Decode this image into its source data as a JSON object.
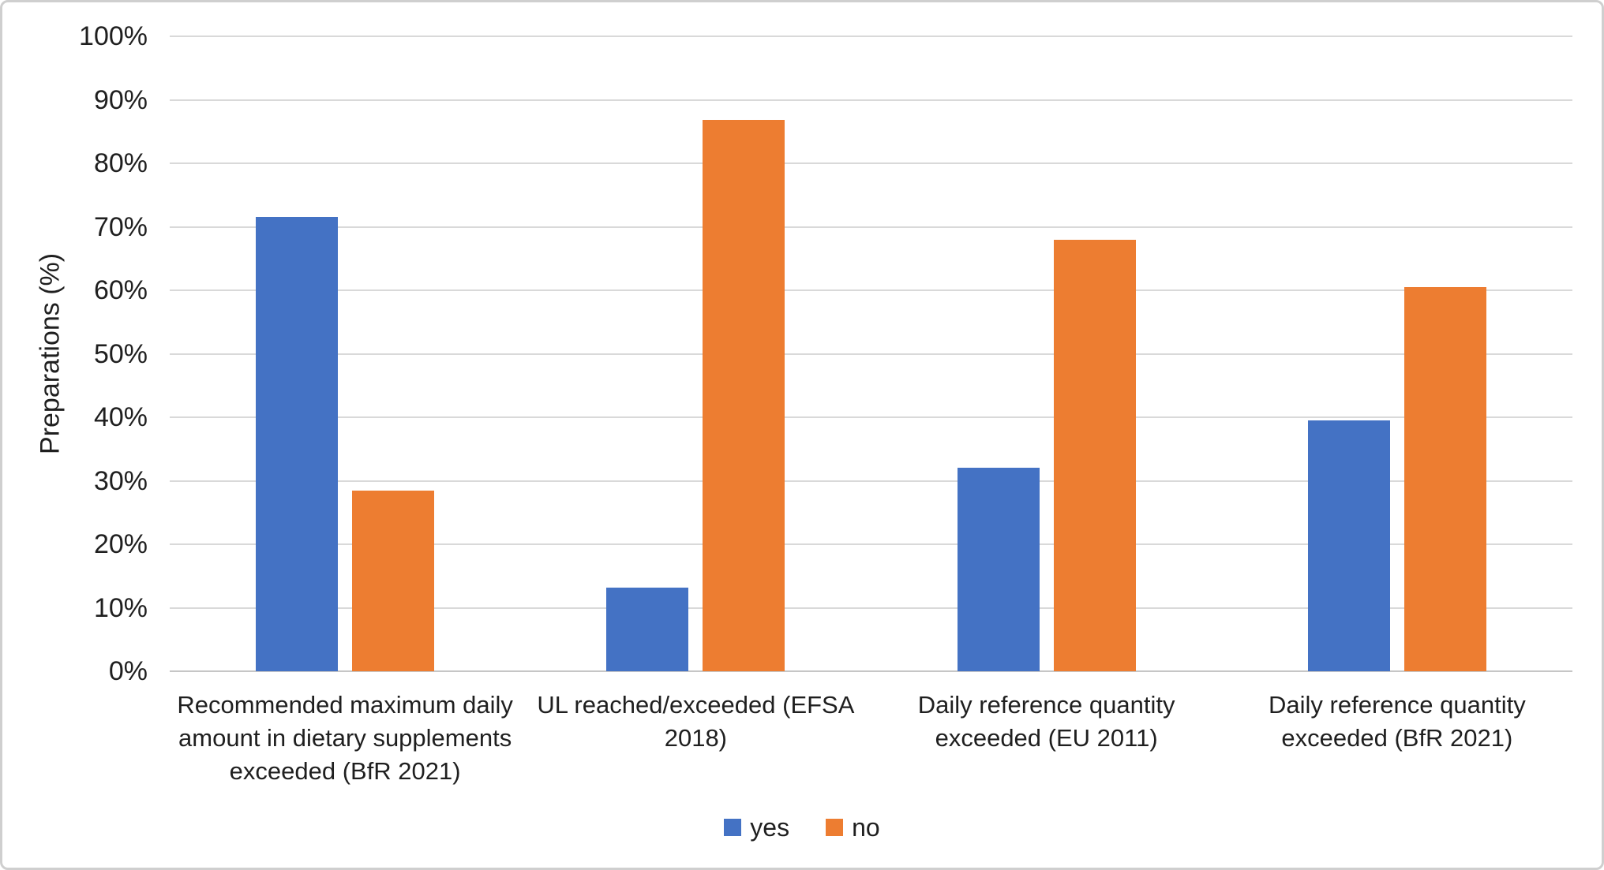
{
  "figure": {
    "background": "#ffffff",
    "border_color": "#cfcfcf",
    "text_color": "#1f1f1f"
  },
  "chart_data": {
    "type": "bar",
    "title": "",
    "xlabel": "",
    "ylabel": "Preparations (%)",
    "ylim": [
      0,
      100
    ],
    "ytick_step": 10,
    "ytick_suffix": "%",
    "grid": true,
    "gridline_color": "#d9d9d9",
    "legend_position": "bottom",
    "categories": [
      "Recommended maximum daily amount in dietary supplements exceeded (BfR 2021)",
      "UL reached/exceeded (EFSA 2018)",
      "Daily reference quantity exceeded (EU 2011)",
      "Daily reference quantity exceeded (BfR 2021)"
    ],
    "series": [
      {
        "name": "yes",
        "color": "#4472C4",
        "values": [
          71.6,
          13.2,
          32.0,
          39.5
        ]
      },
      {
        "name": "no",
        "color": "#ED7D31",
        "values": [
          28.4,
          86.8,
          68.0,
          60.5
        ]
      }
    ]
  }
}
